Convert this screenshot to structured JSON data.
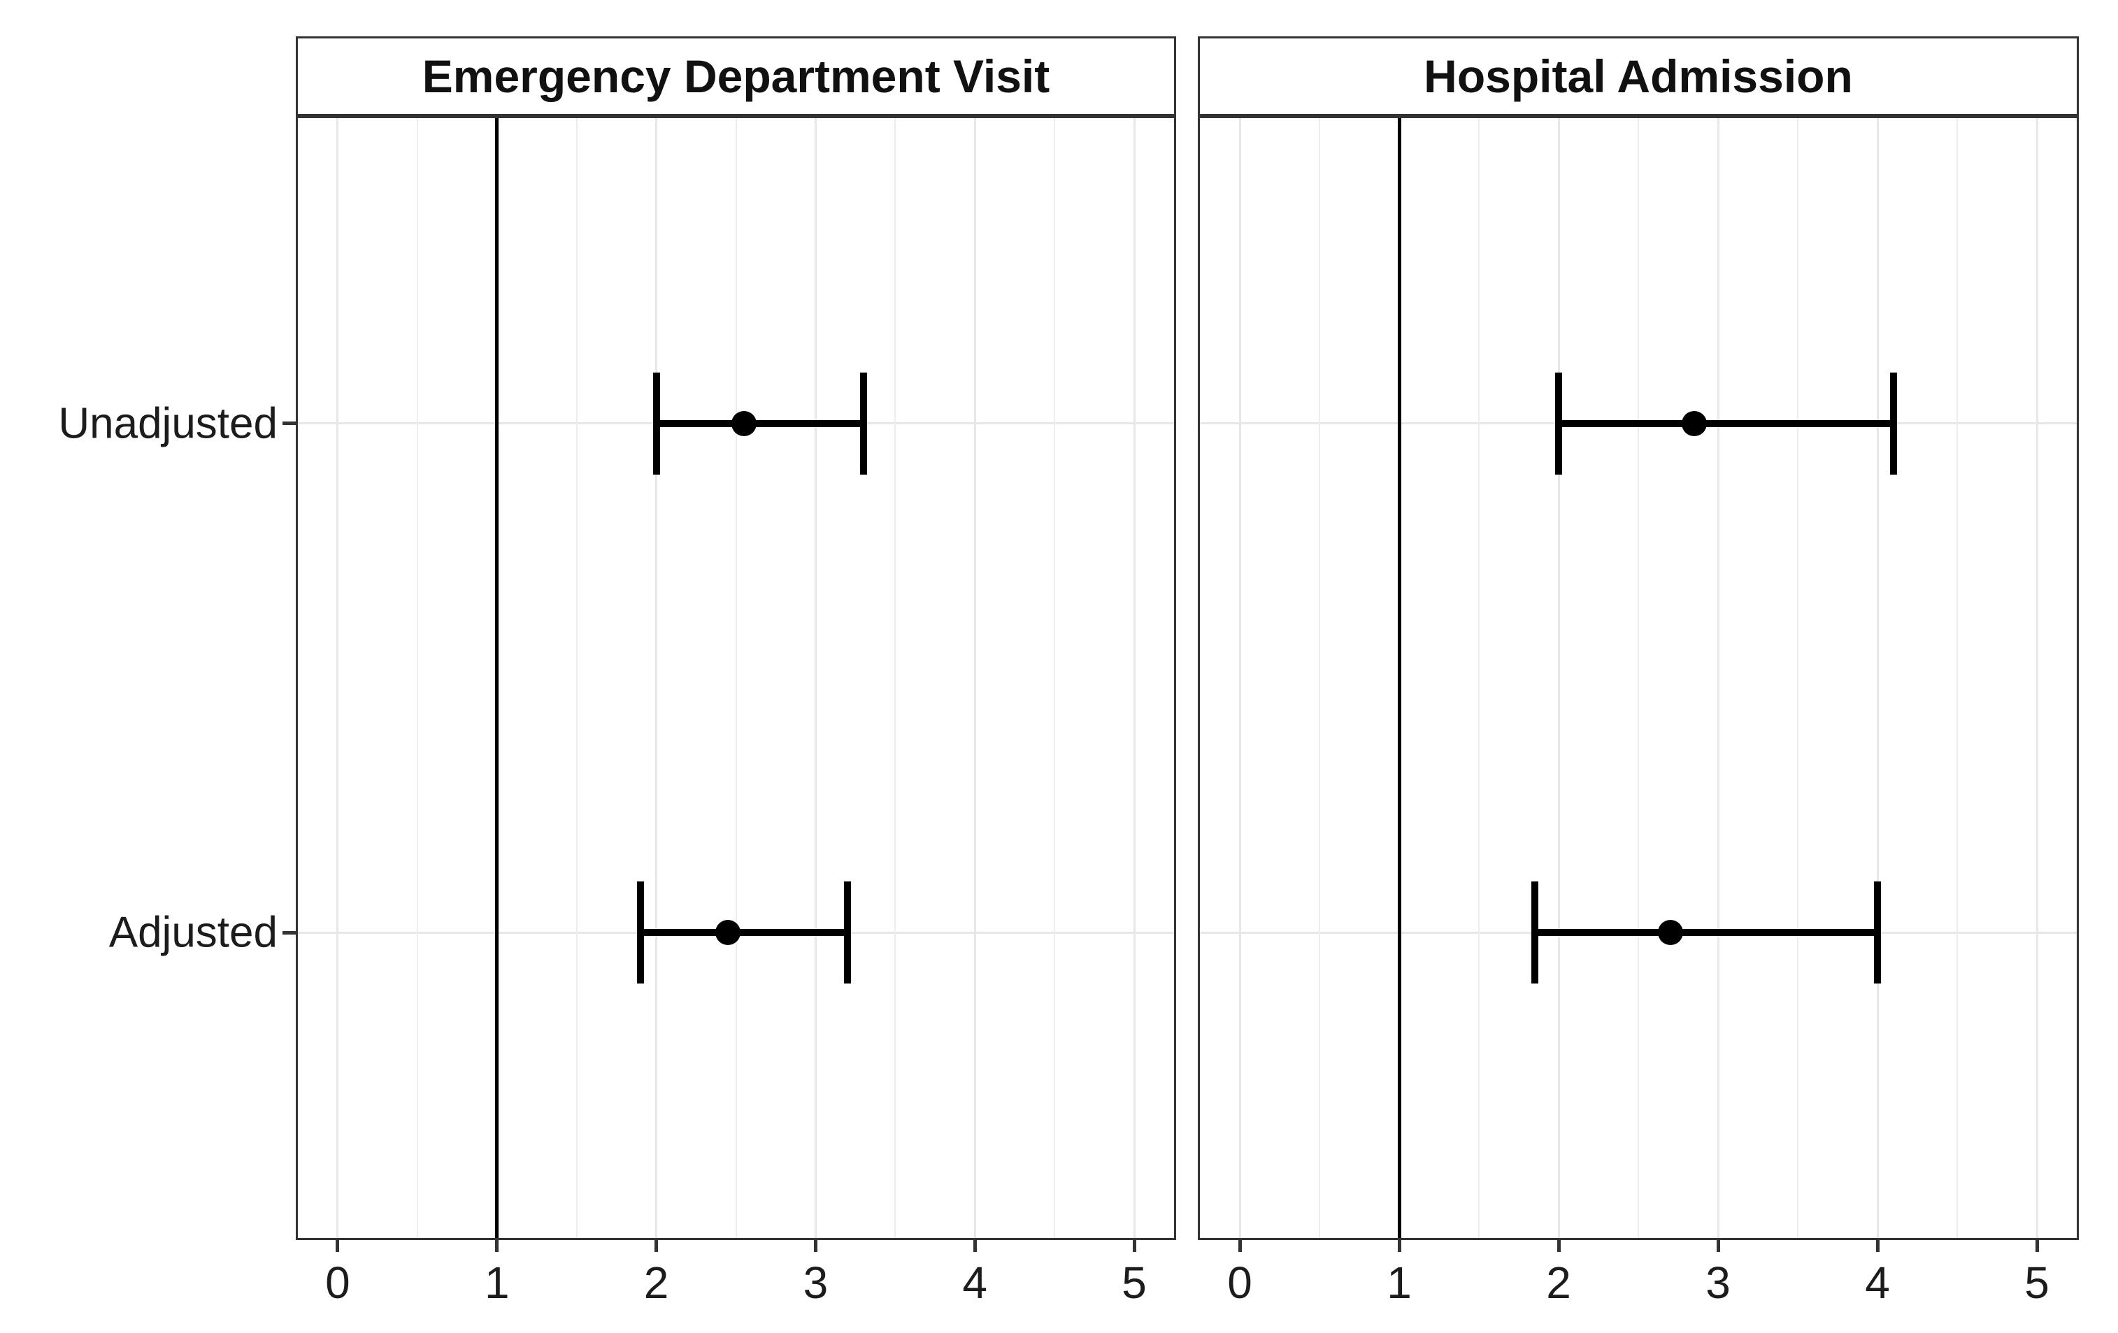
{
  "chart_data": {
    "type": "scatter",
    "subtype": "forest_plot_with_error_bars",
    "title": "",
    "legend": false,
    "grid": true,
    "reference_line_x": 1,
    "x_axis": {
      "ticks": [
        0,
        1,
        2,
        3,
        4,
        5
      ],
      "minor_step": 0.5,
      "range": [
        -0.25,
        5.25
      ],
      "label": ""
    },
    "y_axis": {
      "categories": [
        "Unadjusted",
        "Adjusted"
      ],
      "label": ""
    },
    "panels": [
      {
        "title": "Emergency Department Visit",
        "points": [
          {
            "category": "Unadjusted",
            "estimate": 2.55,
            "ci_lower": 2.0,
            "ci_upper": 3.3
          },
          {
            "category": "Adjusted",
            "estimate": 2.45,
            "ci_lower": 1.9,
            "ci_upper": 3.2
          }
        ]
      },
      {
        "title": "Hospital Admission",
        "points": [
          {
            "category": "Unadjusted",
            "estimate": 2.85,
            "ci_lower": 2.0,
            "ci_upper": 4.1
          },
          {
            "category": "Adjusted",
            "estimate": 2.7,
            "ci_lower": 1.85,
            "ci_upper": 4.0
          }
        ]
      }
    ]
  },
  "colors": {
    "point": "#000000",
    "interval": "#000000",
    "reference_line": "#000000",
    "panel_border": "#333333",
    "grid_major": "#e7e7e7",
    "grid_minor": "#ededed",
    "text": "#111111"
  }
}
